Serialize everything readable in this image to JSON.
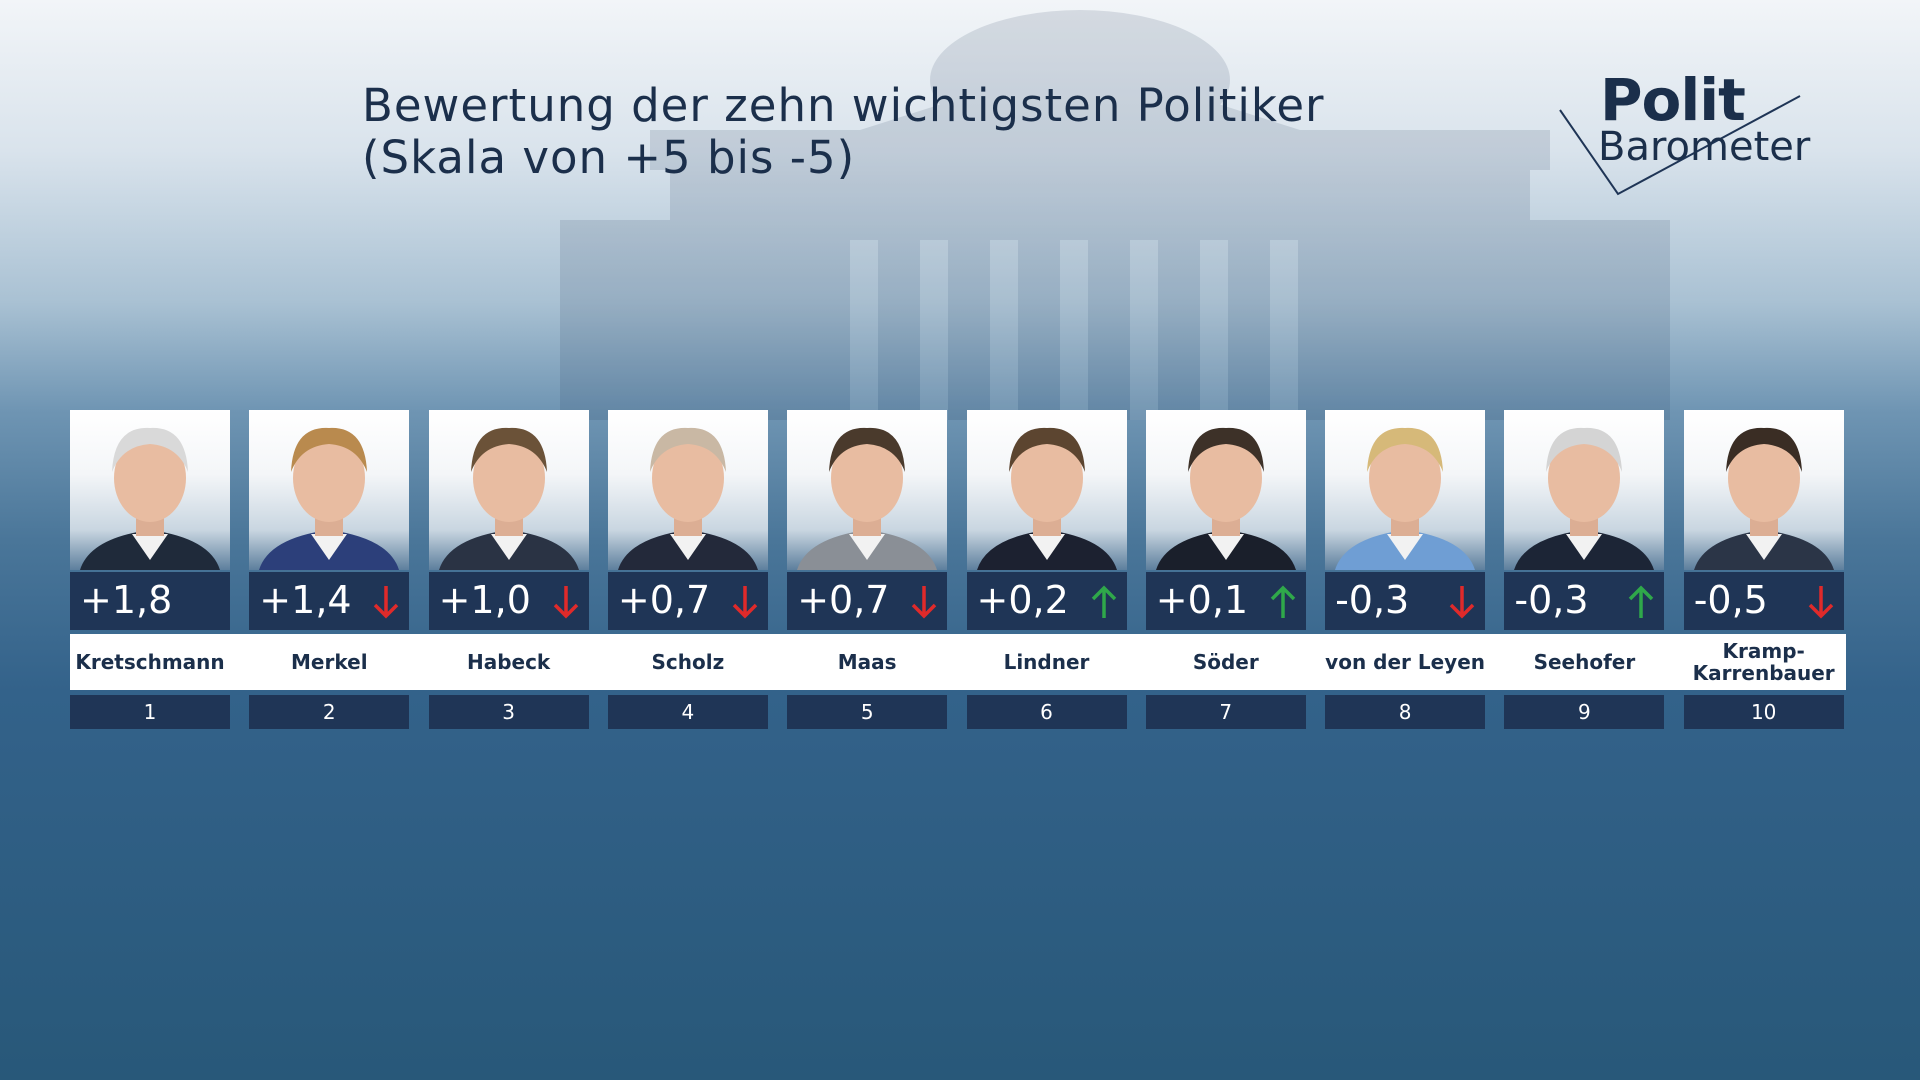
{
  "title": "Bewertung der zehn wichtigsten Politiker",
  "subtitle": "(Skala von +5 bis -5)",
  "logo": {
    "line1": "Polit",
    "line2": "Barometer"
  },
  "colors": {
    "dark_navy": "#1f3556",
    "trend_up": "#2fa84a",
    "trend_down": "#e02a2a"
  },
  "chart_data": {
    "type": "table",
    "title": "Bewertung der zehn wichtigsten Politiker",
    "subtitle": "(Skala von +5 bis -5)",
    "politicians": [
      {
        "rank": "1",
        "name": "Kretschmann",
        "score": "+1,8",
        "value": 1.8,
        "trend": "none",
        "hair": "#d9d9d9",
        "suit": "#1f2a3a"
      },
      {
        "rank": "2",
        "name": "Merkel",
        "score": "+1,4",
        "value": 1.4,
        "trend": "down",
        "hair": "#b98a4e",
        "suit": "#2c3f7a"
      },
      {
        "rank": "3",
        "name": "Habeck",
        "score": "+1,0",
        "value": 1.0,
        "trend": "down",
        "hair": "#6b5238",
        "suit": "#2a3344"
      },
      {
        "rank": "4",
        "name": "Scholz",
        "score": "+0,7",
        "value": 0.7,
        "trend": "down",
        "hair": "#c9b8a4",
        "suit": "#23293a"
      },
      {
        "rank": "5",
        "name": "Maas",
        "score": "+0,7",
        "value": 0.7,
        "trend": "down",
        "hair": "#4a3a2c",
        "suit": "#8a8f96"
      },
      {
        "rank": "6",
        "name": "Lindner",
        "score": "+0,2",
        "value": 0.2,
        "trend": "up",
        "hair": "#5c4530",
        "suit": "#1c2130"
      },
      {
        "rank": "7",
        "name": "Söder",
        "score": "+0,1",
        "value": 0.1,
        "trend": "up",
        "hair": "#3d3128",
        "suit": "#1a1f2b"
      },
      {
        "rank": "8",
        "name": "von der Leyen",
        "score": "-0,3",
        "value": -0.3,
        "trend": "down",
        "hair": "#d6b979",
        "suit": "#6f9ed4"
      },
      {
        "rank": "9",
        "name": "Seehofer",
        "score": "-0,3",
        "value": -0.3,
        "trend": "up",
        "hair": "#d4d4d4",
        "suit": "#1c2536"
      },
      {
        "rank": "10",
        "name": "Kramp-Karrenbauer",
        "score": "-0,5",
        "value": -0.5,
        "trend": "down",
        "hair": "#3a2d24",
        "suit": "#2b3547"
      }
    ]
  }
}
